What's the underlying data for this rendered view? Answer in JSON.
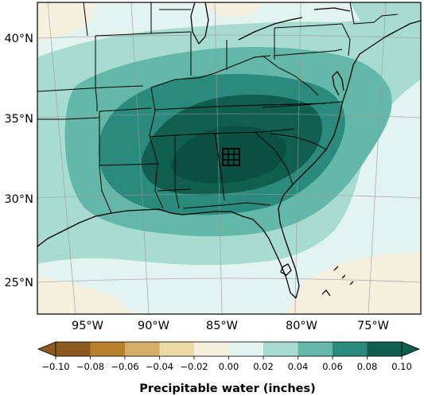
{
  "map": {
    "lat_labels": [
      "40°N",
      "35°N",
      "30°N",
      "25°N"
    ],
    "lon_labels": [
      "95°W",
      "90°W",
      "85°W",
      "80°W",
      "75°W"
    ]
  },
  "colorbar": {
    "title": "Precipitable water (inches)",
    "tick_labels": [
      "−0.10",
      "−0.08",
      "−0.06",
      "−0.04",
      "−0.02",
      "0.00",
      "0.02",
      "0.04",
      "0.06",
      "0.08",
      "0.10"
    ],
    "levels": [
      -0.1,
      -0.08,
      -0.06,
      -0.04,
      -0.02,
      0.0,
      0.02,
      0.04,
      0.06,
      0.08,
      0.1
    ],
    "colors": [
      "#8c5a1e",
      "#b7802f",
      "#d5ad66",
      "#ebd9a6",
      "#f5efde",
      "#e3f3ef",
      "#a8dcd1",
      "#63b8a9",
      "#2a8a7b",
      "#0f5e50"
    ],
    "extend": "both"
  }
}
